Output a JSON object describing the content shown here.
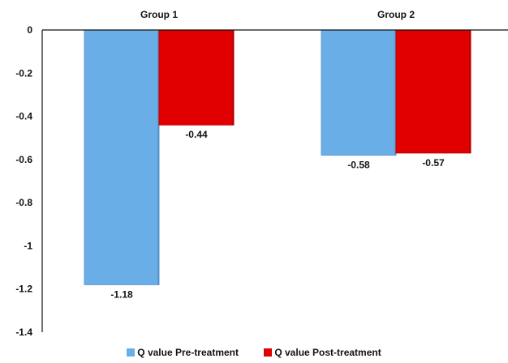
{
  "chart_data": {
    "type": "bar",
    "title": "",
    "xlabel": "",
    "ylabel": "",
    "categories": [
      "Group 1",
      "Group 2"
    ],
    "category_axis_position": "top",
    "series": [
      {
        "name": "Q value Pre-treatment",
        "color": "#6aaee8",
        "values": [
          -1.18,
          -0.58
        ]
      },
      {
        "name": "Q value Post-treatment",
        "color": "#e00000",
        "values": [
          -0.44,
          -0.57
        ]
      }
    ],
    "data_labels": [
      [
        "-1.18",
        "-0.58"
      ],
      [
        "-0.44",
        "-0.57"
      ]
    ],
    "ylim": [
      -1.4,
      0
    ],
    "yticks": [
      0,
      -0.2,
      -0.4,
      -0.6,
      -0.8,
      -1,
      -1.2,
      -1.4
    ],
    "ytick_labels": [
      "0",
      "-0.2",
      "-0.4",
      "-0.6",
      "-0.8",
      "-1",
      "-1.2",
      "-1.4"
    ],
    "grid": false,
    "legend_position": "bottom"
  }
}
